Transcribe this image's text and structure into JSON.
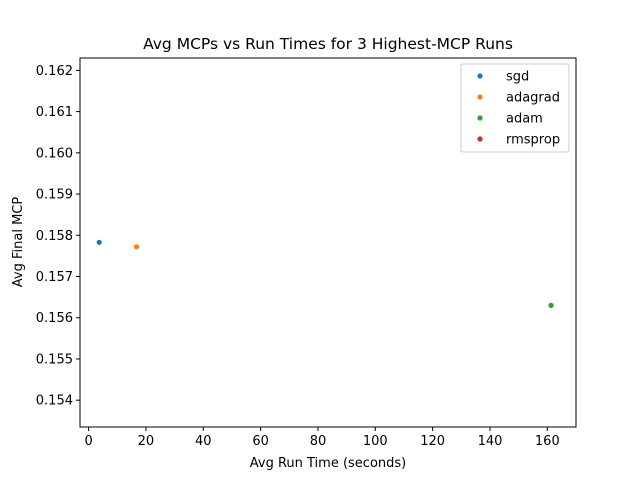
{
  "chart_data": {
    "type": "scatter",
    "title": "Avg MCPs vs Run Times for 3 Highest-MCP Runs",
    "xlabel": "Avg Run Time (seconds)",
    "ylabel": "Avg Final MCP",
    "xlim": [
      -3,
      170
    ],
    "ylim": [
      0.15335,
      0.1623
    ],
    "xticks": [
      0,
      20,
      40,
      60,
      80,
      100,
      120,
      140,
      160
    ],
    "yticks": [
      0.154,
      0.155,
      0.156,
      0.157,
      0.158,
      0.159,
      0.16,
      0.161,
      0.162
    ],
    "xtick_labels": [
      "0",
      "20",
      "40",
      "60",
      "80",
      "100",
      "120",
      "140",
      "160"
    ],
    "ytick_labels": [
      "0.154",
      "0.155",
      "0.156",
      "0.157",
      "0.158",
      "0.159",
      "0.160",
      "0.161",
      "0.162"
    ],
    "grid": false,
    "legend_position": "top-right",
    "series": [
      {
        "name": "sgd",
        "color": "#1f77b4",
        "points": [
          {
            "x": 3.7,
            "y": 0.15783
          }
        ]
      },
      {
        "name": "adagrad",
        "color": "#ff7f0e",
        "points": [
          {
            "x": 16.7,
            "y": 0.15772
          }
        ]
      },
      {
        "name": "adam",
        "color": "#2ca02c",
        "points": [
          {
            "x": 161.3,
            "y": 0.1563
          }
        ]
      },
      {
        "name": "rmsprop",
        "color": "#d62728",
        "points": []
      }
    ]
  }
}
